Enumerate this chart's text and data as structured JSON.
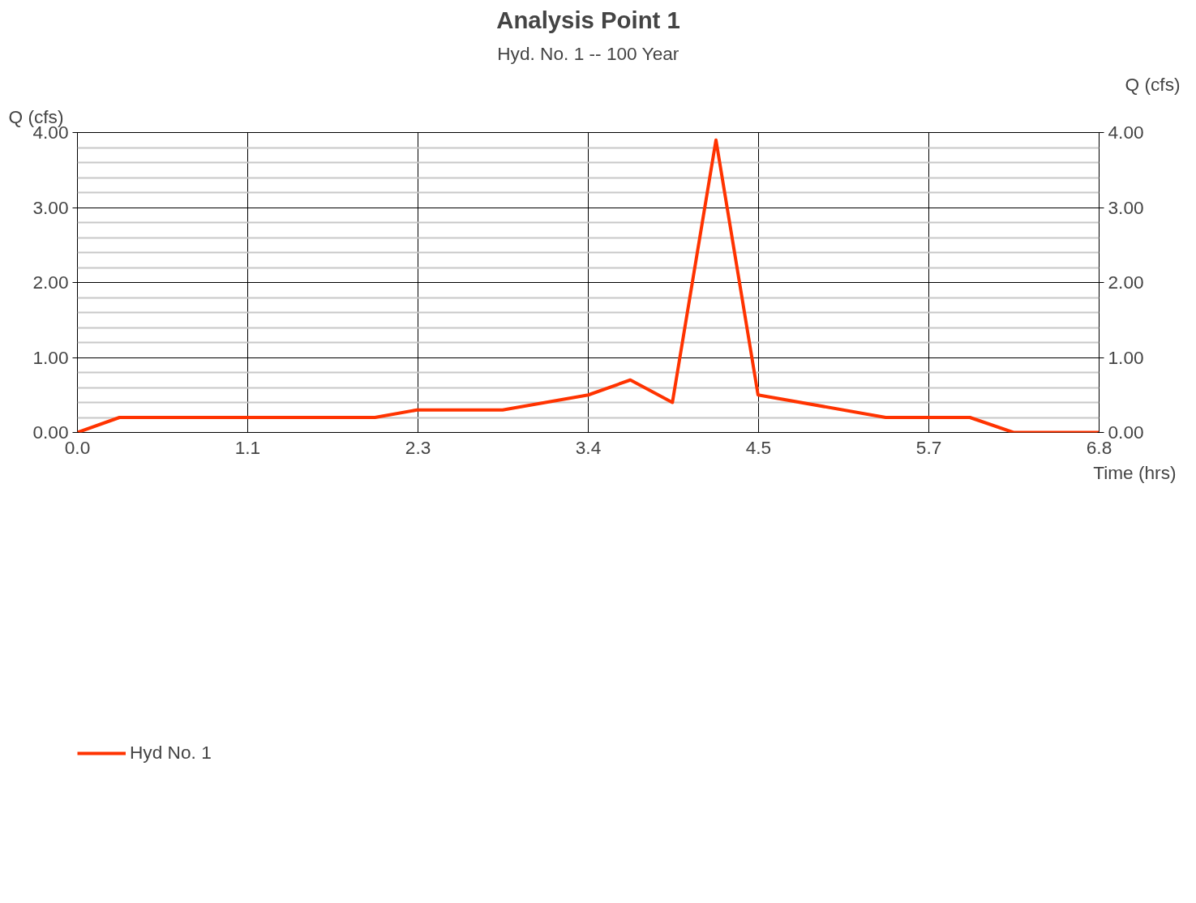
{
  "chart_data": {
    "type": "line",
    "title": "Analysis Point 1",
    "subtitle": "Hyd. No. 1 -- 100 Year",
    "xlabel": "Time (hrs)",
    "ylabel": "Q (cfs)",
    "y2label": "Q (cfs)",
    "x": [
      0,
      0.28,
      1.98,
      2.26,
      2.83,
      3.4,
      3.68,
      3.96,
      4.25,
      4.53,
      5.38,
      5.94,
      6.23,
      6.8
    ],
    "series": [
      {
        "name": "Hyd No. 1",
        "color": "#ff3300",
        "values": [
          0,
          0.2,
          0.2,
          0.3,
          0.3,
          0.5,
          0.7,
          0.4,
          3.9,
          0.5,
          0.2,
          0.2,
          0,
          0
        ]
      }
    ],
    "xlim": [
      0,
      6.8
    ],
    "xticks": [
      {
        "value": 0,
        "label": "0.0"
      },
      {
        "value": 1.133,
        "label": "1.1"
      },
      {
        "value": 2.267,
        "label": "2.3"
      },
      {
        "value": 3.4,
        "label": "3.4"
      },
      {
        "value": 4.533,
        "label": "4.5"
      },
      {
        "value": 5.667,
        "label": "5.7"
      },
      {
        "value": 6.8,
        "label": "6.8"
      }
    ],
    "ylim": [
      0,
      4
    ],
    "yticks": [
      {
        "value": 0,
        "label": "0.00"
      },
      {
        "value": 0.2,
        "label": null
      },
      {
        "value": 0.4,
        "label": null
      },
      {
        "value": 0.6,
        "label": null
      },
      {
        "value": 0.8,
        "label": null
      },
      {
        "value": 1,
        "label": "1.00"
      },
      {
        "value": 1.2,
        "label": null
      },
      {
        "value": 1.4,
        "label": null
      },
      {
        "value": 1.6,
        "label": null
      },
      {
        "value": 1.8,
        "label": null
      },
      {
        "value": 2,
        "label": "2.00"
      },
      {
        "value": 2.2,
        "label": null
      },
      {
        "value": 2.4,
        "label": null
      },
      {
        "value": 2.6,
        "label": null
      },
      {
        "value": 2.8,
        "label": null
      },
      {
        "value": 3,
        "label": "3.00"
      },
      {
        "value": 3.2,
        "label": null
      },
      {
        "value": 3.4,
        "label": null
      },
      {
        "value": 3.6,
        "label": null
      },
      {
        "value": 3.8,
        "label": null
      },
      {
        "value": 4,
        "label": "4.00"
      }
    ],
    "y2lim": [
      0,
      4
    ],
    "y2ticks": [
      {
        "value": 0,
        "label": "0.00"
      },
      {
        "value": 1,
        "label": "1.00"
      },
      {
        "value": 2,
        "label": "2.00"
      },
      {
        "value": 3,
        "label": "3.00"
      },
      {
        "value": 4,
        "label": "4.00"
      }
    ],
    "grid": true,
    "legend": "bottom left",
    "marker": "none",
    "line_style": "solid"
  }
}
